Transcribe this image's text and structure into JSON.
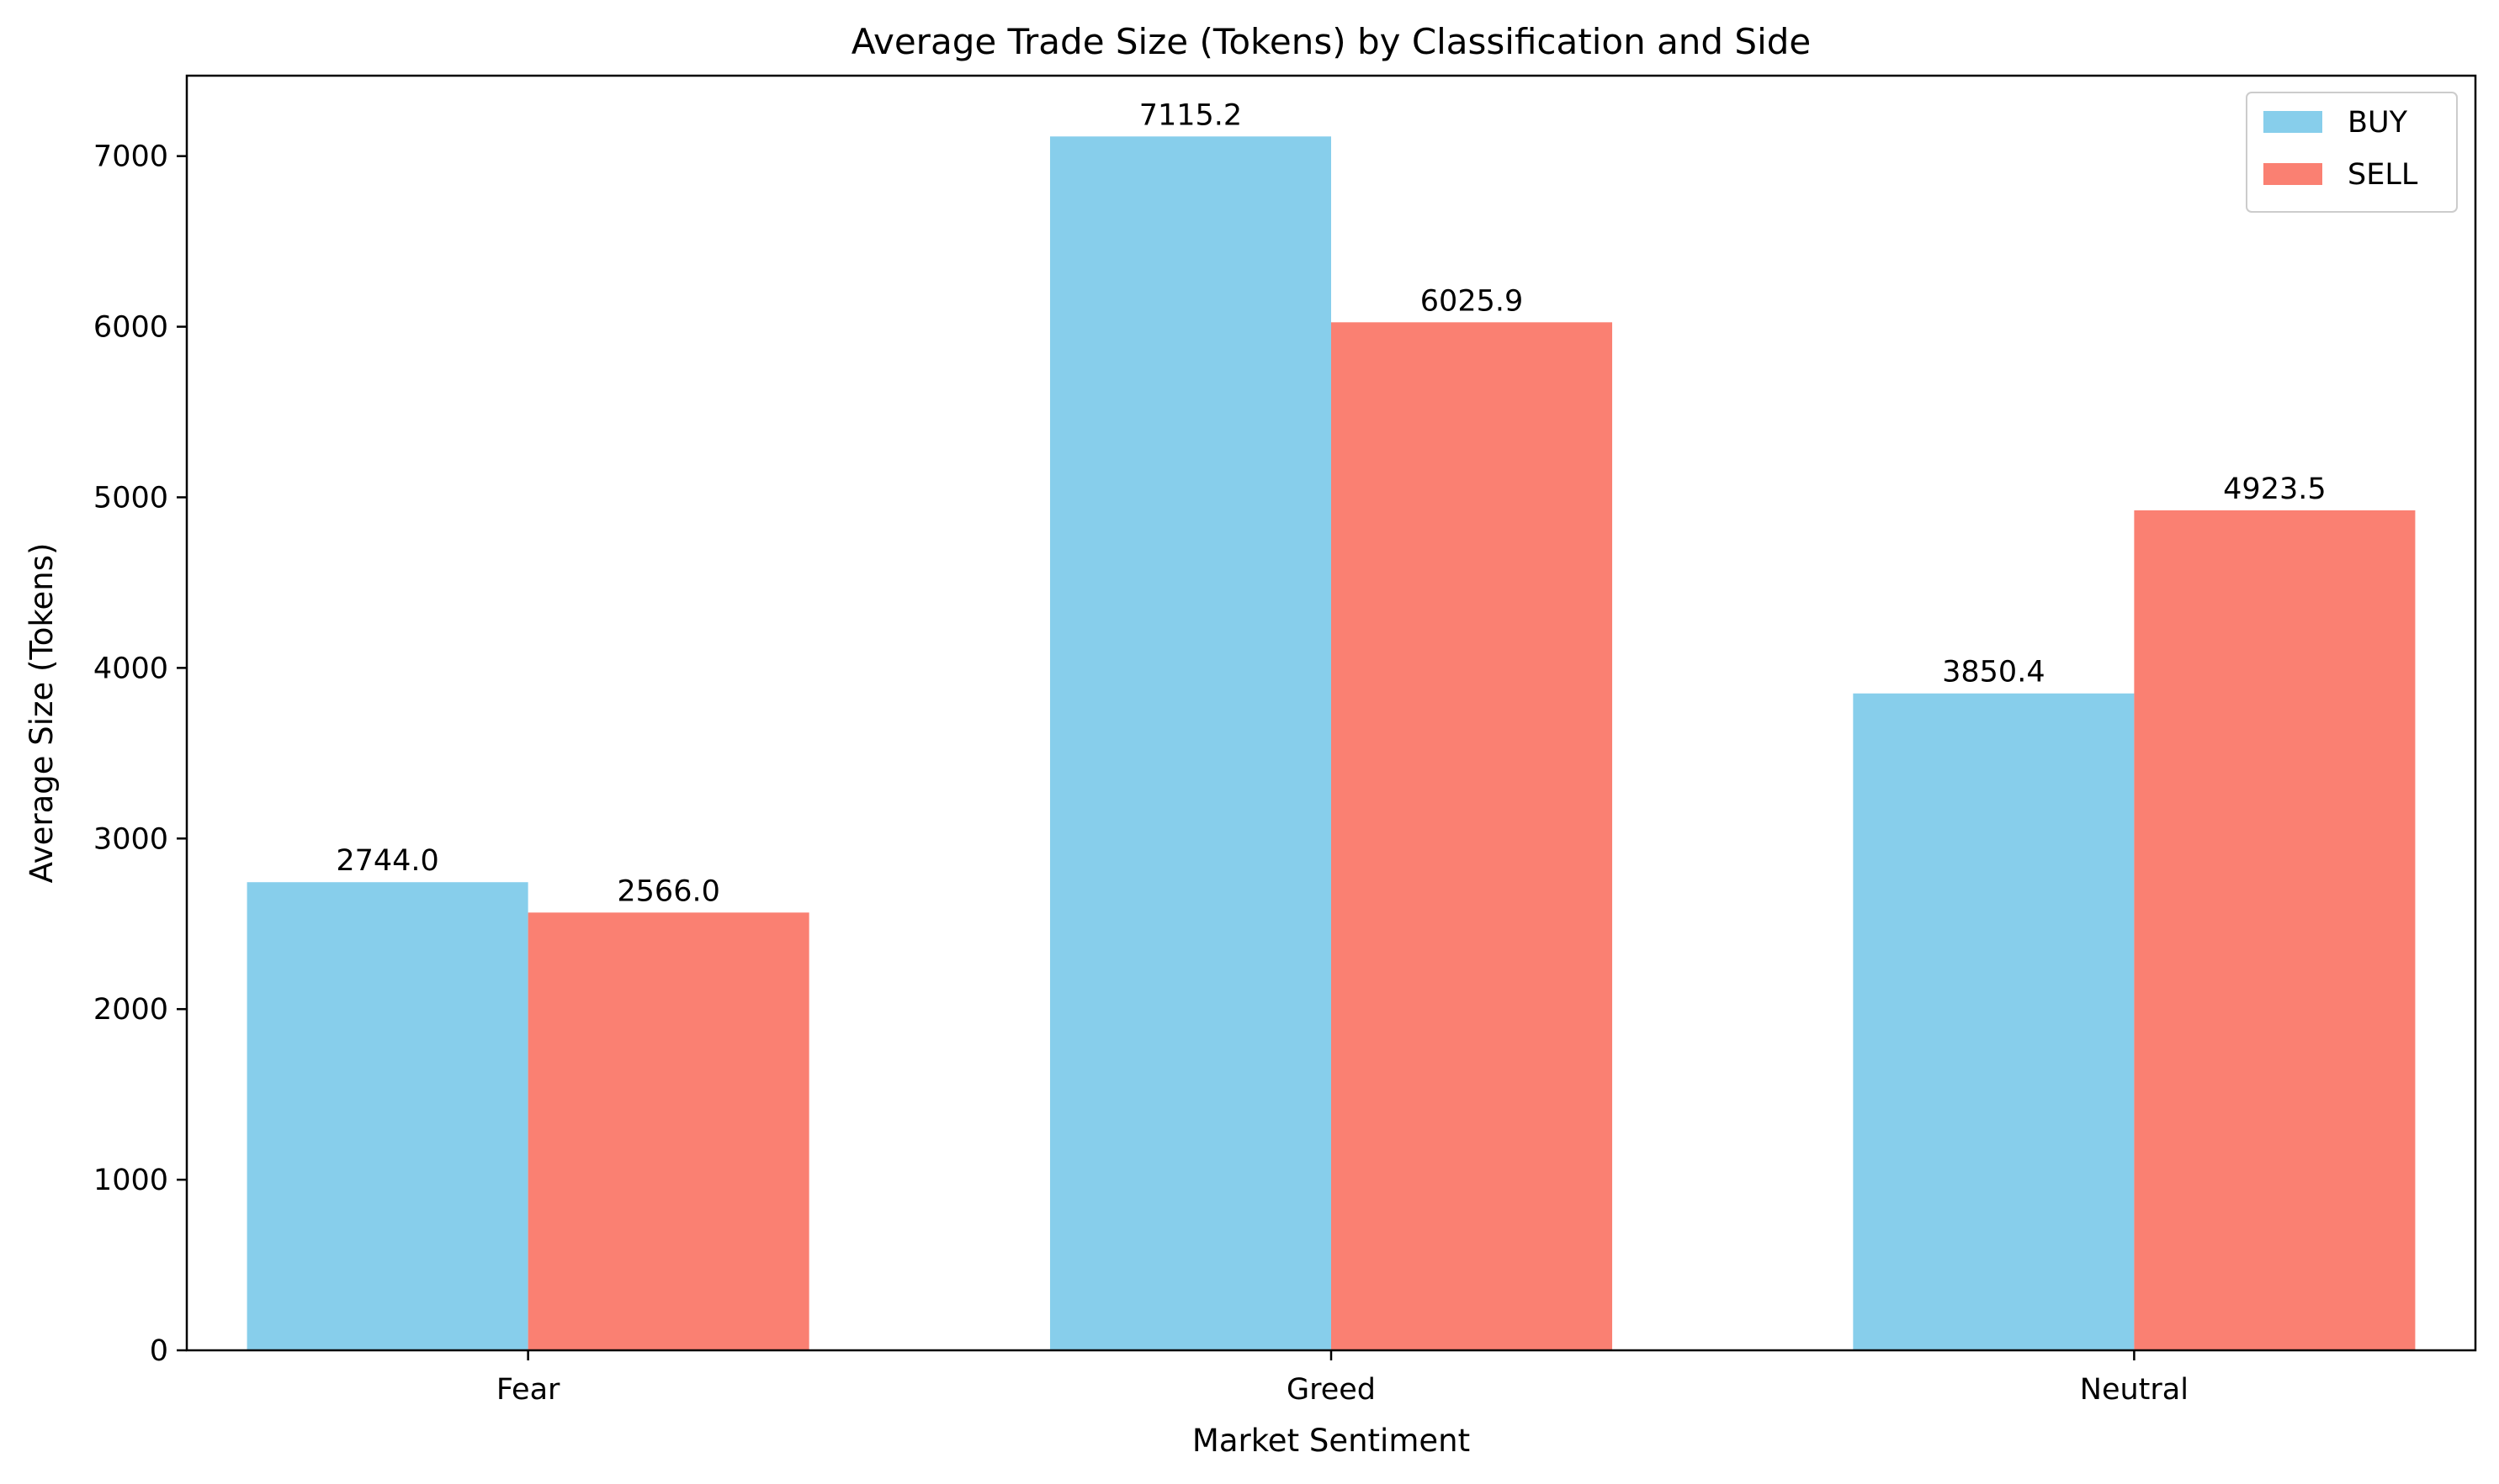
{
  "chart_data": {
    "type": "bar",
    "title": "Average Trade Size (Tokens) by Classification and Side",
    "xlabel": "Market Sentiment",
    "ylabel": "Average Size (Tokens)",
    "categories": [
      "Fear",
      "Greed",
      "Neutral"
    ],
    "series": [
      {
        "name": "BUY",
        "color": "#87ceeb",
        "values": [
          2744.0,
          7115.2,
          3850.4
        ],
        "labels": [
          "2744.0",
          "7115.2",
          "3850.4"
        ]
      },
      {
        "name": "SELL",
        "color": "#fa8072",
        "values": [
          2566.0,
          6025.9,
          4923.5
        ],
        "labels": [
          "2566.0",
          "6025.9",
          "4923.5"
        ]
      }
    ],
    "ylim": [
      0,
      7471.5
    ],
    "yticks": [
      0,
      1000,
      2000,
      3000,
      4000,
      5000,
      6000,
      7000
    ],
    "grid": false,
    "legend_position": "top-right"
  }
}
